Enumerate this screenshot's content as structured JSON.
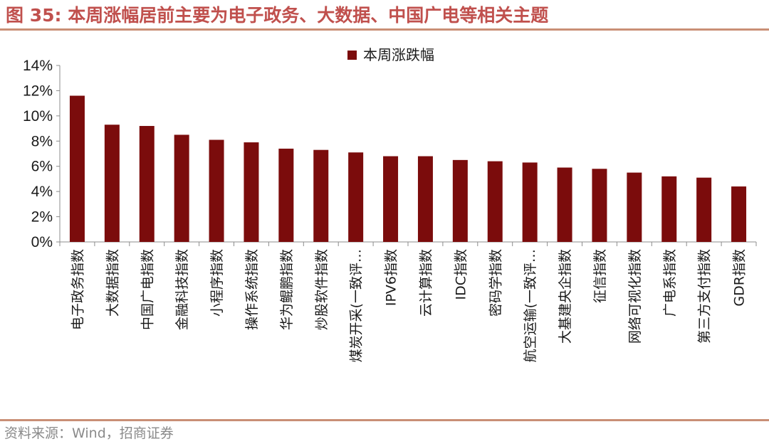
{
  "figure": {
    "title": "图 35:  本周涨幅居前主要为电子政务、大数据、中国广电等相关主题",
    "source": "资料来源：Wind，招商证券"
  },
  "colors": {
    "bar": "#7b0c0c",
    "title": "#c0504d",
    "rule": "#c98f76",
    "source_text": "#8a8a8a"
  },
  "chart_data": {
    "type": "bar",
    "categories": [
      "电子政务指数",
      "大数据指数",
      "中国广电指数",
      "金融科技指数",
      "小程序指数",
      "操作系统指数",
      "华为鲲鹏指数",
      "炒股软件指数",
      "煤炭开采(一致评…",
      "IPV6指数",
      "云计算指数",
      "IDC指数",
      "密码学指数",
      "航空运输(一致评…",
      "大基建央企指数",
      "征信指数",
      "网络可视化指数",
      "广电系指数",
      "第三方支付指数",
      "GDR指数"
    ],
    "series": [
      {
        "name": "本周涨跌幅",
        "values": [
          11.6,
          9.3,
          9.2,
          8.5,
          8.1,
          7.9,
          7.4,
          7.3,
          7.1,
          6.8,
          6.8,
          6.5,
          6.4,
          6.3,
          5.9,
          5.8,
          5.5,
          5.2,
          5.1,
          4.4
        ]
      }
    ],
    "yticks": [
      "0%",
      "2%",
      "4%",
      "6%",
      "8%",
      "10%",
      "12%",
      "14%"
    ],
    "ylim": [
      0,
      14
    ],
    "grid": false,
    "legend_position": "top"
  }
}
